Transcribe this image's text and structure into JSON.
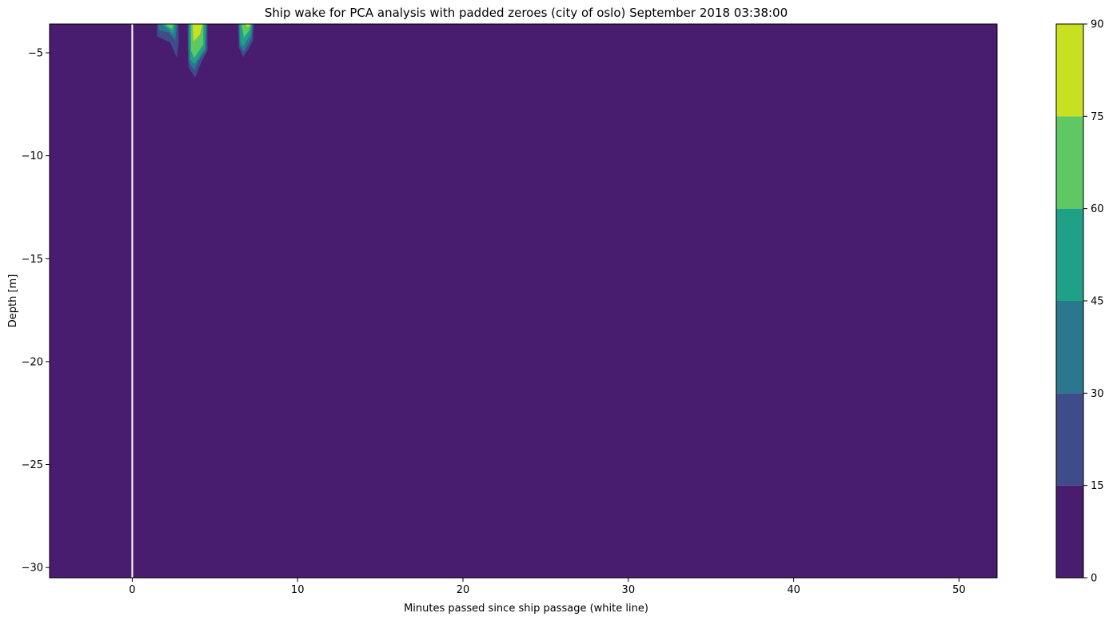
{
  "chart_data": {
    "type": "heatmap",
    "subtype": "filled-contour",
    "title": "Ship wake for PCA analysis with padded zeroes (city of oslo) September 2018 03:38:00",
    "xlabel": "Minutes passed since ship passage (white line)",
    "ylabel": "Depth [m]",
    "xlim": [
      -5,
      52.3
    ],
    "ylim": [
      -30.5,
      -3.6
    ],
    "xticks": [
      0,
      10,
      20,
      30,
      40,
      50
    ],
    "yticks": [
      -5,
      -10,
      -15,
      -20,
      -25,
      -30
    ],
    "xtick_labels": [
      "0",
      "10",
      "20",
      "30",
      "40",
      "50"
    ],
    "ytick_labels": [
      "−5",
      "−10",
      "−15",
      "−20",
      "−25",
      "−30"
    ],
    "marker_line": {
      "x": 0,
      "color": "#ffffff",
      "label": "ship passage"
    },
    "background_value": 0,
    "colorbar": {
      "levels": [
        0,
        15,
        30,
        45,
        60,
        75,
        90
      ],
      "tick_labels": [
        "0",
        "15",
        "30",
        "45",
        "60",
        "75",
        "90"
      ],
      "colors": [
        "#481c6e",
        "#3e4c8a",
        "#2a788e",
        "#1fa187",
        "#5ec962",
        "#c8e020"
      ]
    },
    "wake_features": [
      {
        "x_peak": 2,
        "peak_value": 60,
        "max_depth": -5.3,
        "rings": [
          {
            "level_index": 1,
            "points": [
              [
                1.5,
                -3.6
              ],
              [
                2.8,
                -3.6
              ],
              [
                2.8,
                -4.6
              ],
              [
                2.7,
                -5.25
              ],
              [
                2.3,
                -4.5
              ],
              [
                1.5,
                -4.2
              ]
            ]
          },
          {
            "level_index": 2,
            "points": [
              [
                1.6,
                -3.6
              ],
              [
                2.7,
                -3.6
              ],
              [
                2.6,
                -4.4
              ],
              [
                2.2,
                -4.0
              ],
              [
                1.6,
                -3.9
              ]
            ]
          },
          {
            "level_index": 3,
            "points": [
              [
                1.8,
                -3.6
              ],
              [
                2.6,
                -3.6
              ],
              [
                2.5,
                -4.1
              ],
              [
                2.1,
                -3.8
              ]
            ]
          },
          {
            "level_index": 4,
            "points": [
              [
                2.0,
                -3.6
              ],
              [
                2.5,
                -3.6
              ],
              [
                2.4,
                -3.85
              ],
              [
                2.1,
                -3.7
              ]
            ]
          }
        ]
      },
      {
        "x_peak": 3.8,
        "peak_value": 90,
        "max_depth": -6.2,
        "rings": [
          {
            "level_index": 1,
            "points": [
              [
                3.35,
                -3.6
              ],
              [
                4.55,
                -3.6
              ],
              [
                4.55,
                -4.9
              ],
              [
                4.2,
                -5.4
              ],
              [
                3.8,
                -6.2
              ],
              [
                3.4,
                -5.7
              ],
              [
                3.35,
                -4.7
              ]
            ]
          },
          {
            "level_index": 2,
            "points": [
              [
                3.4,
                -3.6
              ],
              [
                4.5,
                -3.6
              ],
              [
                4.45,
                -4.9
              ],
              [
                4.0,
                -5.4
              ],
              [
                3.75,
                -5.85
              ],
              [
                3.45,
                -5.5
              ],
              [
                3.4,
                -4.7
              ]
            ]
          },
          {
            "level_index": 3,
            "points": [
              [
                3.45,
                -3.6
              ],
              [
                4.45,
                -3.6
              ],
              [
                4.4,
                -4.8
              ],
              [
                3.75,
                -5.55
              ],
              [
                3.5,
                -5.3
              ]
            ]
          },
          {
            "level_index": 4,
            "points": [
              [
                3.55,
                -3.6
              ],
              [
                4.3,
                -3.6
              ],
              [
                4.3,
                -4.6
              ],
              [
                3.75,
                -5.25
              ],
              [
                3.55,
                -4.9
              ]
            ]
          },
          {
            "level_index": 5,
            "points": [
              [
                3.65,
                -3.6
              ],
              [
                4.25,
                -3.6
              ],
              [
                4.1,
                -4.1
              ],
              [
                3.7,
                -4.45
              ]
            ]
          }
        ]
      },
      {
        "x_peak": 6.8,
        "peak_value": 75,
        "max_depth": -5.2,
        "rings": [
          {
            "level_index": 1,
            "points": [
              [
                6.4,
                -3.6
              ],
              [
                7.35,
                -3.6
              ],
              [
                7.3,
                -4.4
              ],
              [
                7.0,
                -4.85
              ],
              [
                6.7,
                -5.2
              ],
              [
                6.45,
                -4.75
              ]
            ]
          },
          {
            "level_index": 2,
            "points": [
              [
                6.45,
                -3.6
              ],
              [
                7.3,
                -3.6
              ],
              [
                7.2,
                -4.3
              ],
              [
                6.75,
                -4.95
              ],
              [
                6.5,
                -4.65
              ]
            ]
          },
          {
            "level_index": 3,
            "points": [
              [
                6.5,
                -3.6
              ],
              [
                7.25,
                -3.6
              ],
              [
                7.15,
                -4.1
              ],
              [
                6.7,
                -4.7
              ],
              [
                6.55,
                -4.5
              ]
            ]
          },
          {
            "level_index": 4,
            "points": [
              [
                6.6,
                -3.6
              ],
              [
                7.2,
                -3.6
              ],
              [
                7.05,
                -3.95
              ],
              [
                6.75,
                -4.25
              ]
            ]
          },
          {
            "level_index": 5,
            "points": [
              [
                6.8,
                -3.6
              ],
              [
                7.15,
                -3.6
              ],
              [
                7.0,
                -3.75
              ]
            ]
          }
        ]
      }
    ]
  }
}
